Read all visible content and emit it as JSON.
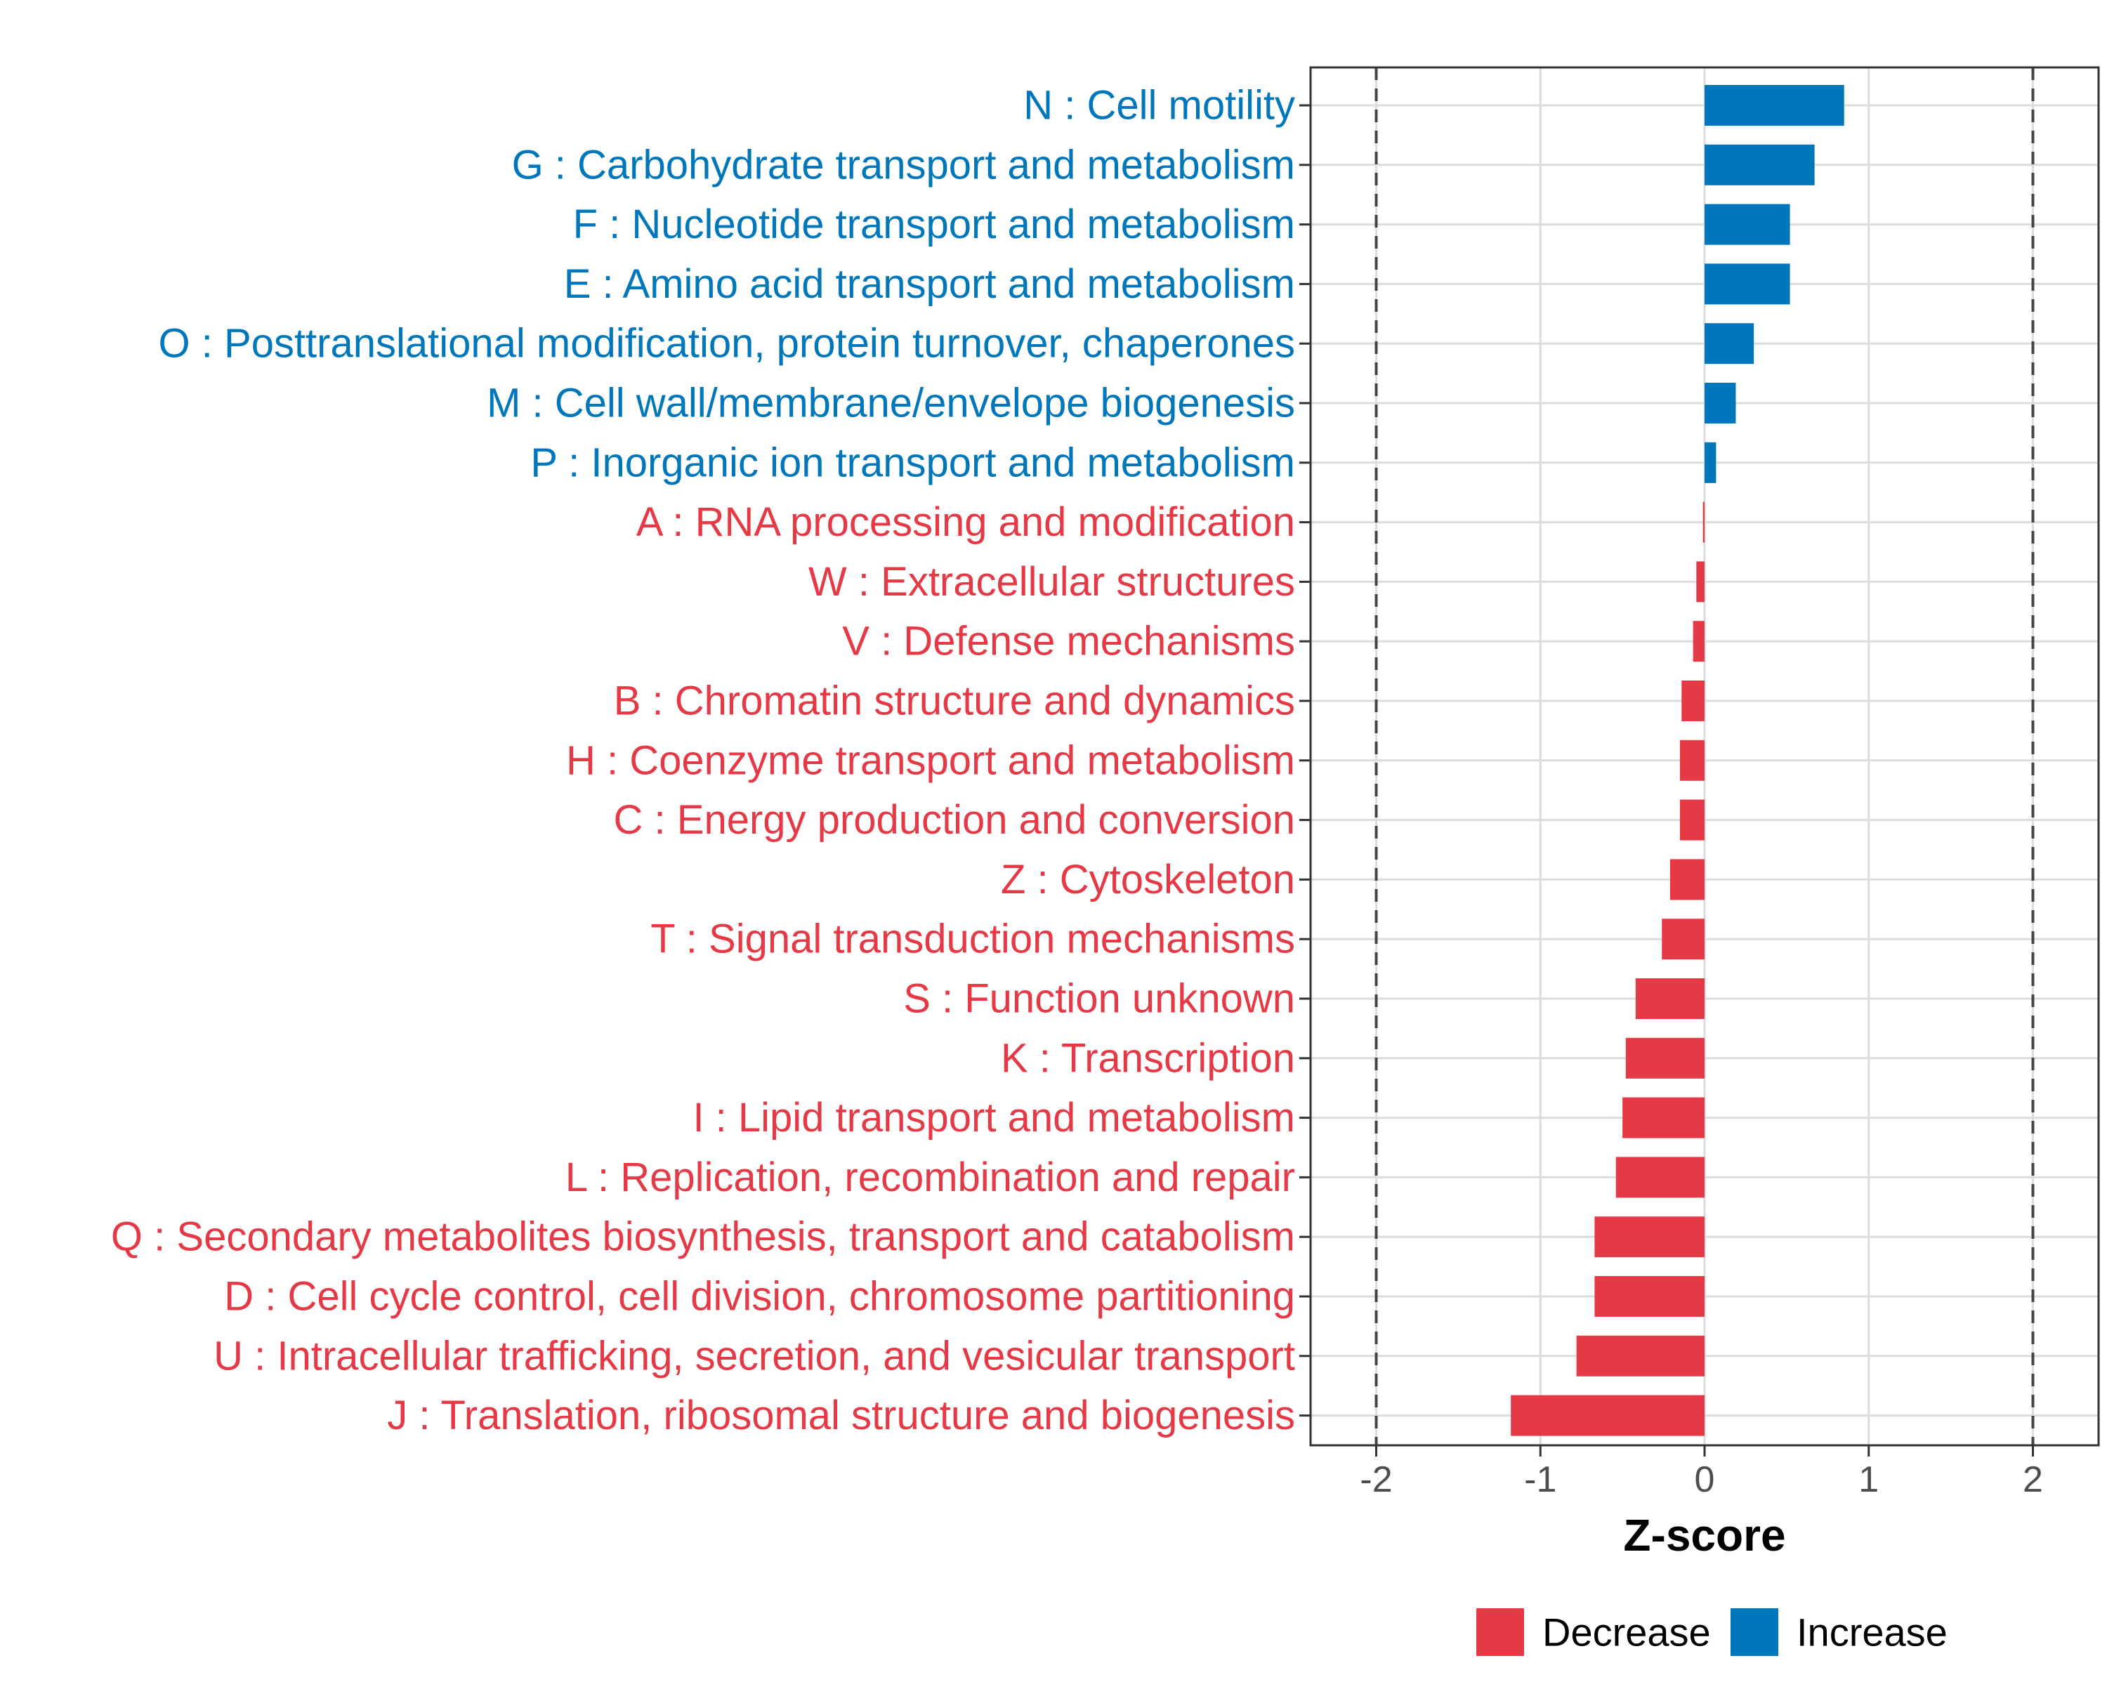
{
  "chart_data": {
    "type": "bar",
    "orientation": "horizontal",
    "xlabel": "Z-score",
    "ylabel": "",
    "xlim": [
      -2.4,
      2.4
    ],
    "xticks": [
      -2,
      -1,
      0,
      1,
      2
    ],
    "xtick_labels": [
      "-2",
      "-1",
      "0",
      "1",
      "2"
    ],
    "reference_lines": [
      -2,
      2
    ],
    "grid": true,
    "legend_position": "bottom",
    "colors": {
      "Decrease": "#e63946",
      "Increase": "#0077bb"
    },
    "legend": [
      {
        "name": "Decrease",
        "color": "#e63946"
      },
      {
        "name": "Increase",
        "color": "#0077bb"
      }
    ],
    "categories": [
      "N : Cell motility",
      "G : Carbohydrate transport and metabolism",
      "F : Nucleotide transport and metabolism",
      "E : Amino acid transport and metabolism",
      "O : Posttranslational modification, protein turnover, chaperones",
      "M : Cell wall/membrane/envelope biogenesis",
      "P : Inorganic ion transport and metabolism",
      "A : RNA processing and modification",
      "W : Extracellular structures",
      "V : Defense mechanisms",
      "B : Chromatin structure and dynamics",
      "H : Coenzyme transport and metabolism",
      "C : Energy production and conversion",
      "Z : Cytoskeleton",
      "T : Signal transduction mechanisms",
      "S : Function unknown",
      "K : Transcription",
      "I : Lipid transport and metabolism",
      "L : Replication, recombination and repair",
      "Q : Secondary metabolites biosynthesis, transport and catabolism",
      "D : Cell cycle control, cell division, chromosome partitioning",
      "U : Intracellular trafficking, secretion, and vesicular transport",
      "J : Translation, ribosomal structure and biogenesis"
    ],
    "values": [
      0.85,
      0.67,
      0.52,
      0.52,
      0.3,
      0.19,
      0.07,
      -0.01,
      -0.05,
      -0.07,
      -0.14,
      -0.15,
      -0.15,
      -0.21,
      -0.26,
      -0.42,
      -0.48,
      -0.5,
      -0.54,
      -0.67,
      -0.67,
      -0.78,
      -1.18
    ],
    "groups": [
      "Increase",
      "Increase",
      "Increase",
      "Increase",
      "Increase",
      "Increase",
      "Increase",
      "Decrease",
      "Decrease",
      "Decrease",
      "Decrease",
      "Decrease",
      "Decrease",
      "Decrease",
      "Decrease",
      "Decrease",
      "Decrease",
      "Decrease",
      "Decrease",
      "Decrease",
      "Decrease",
      "Decrease",
      "Decrease"
    ]
  }
}
